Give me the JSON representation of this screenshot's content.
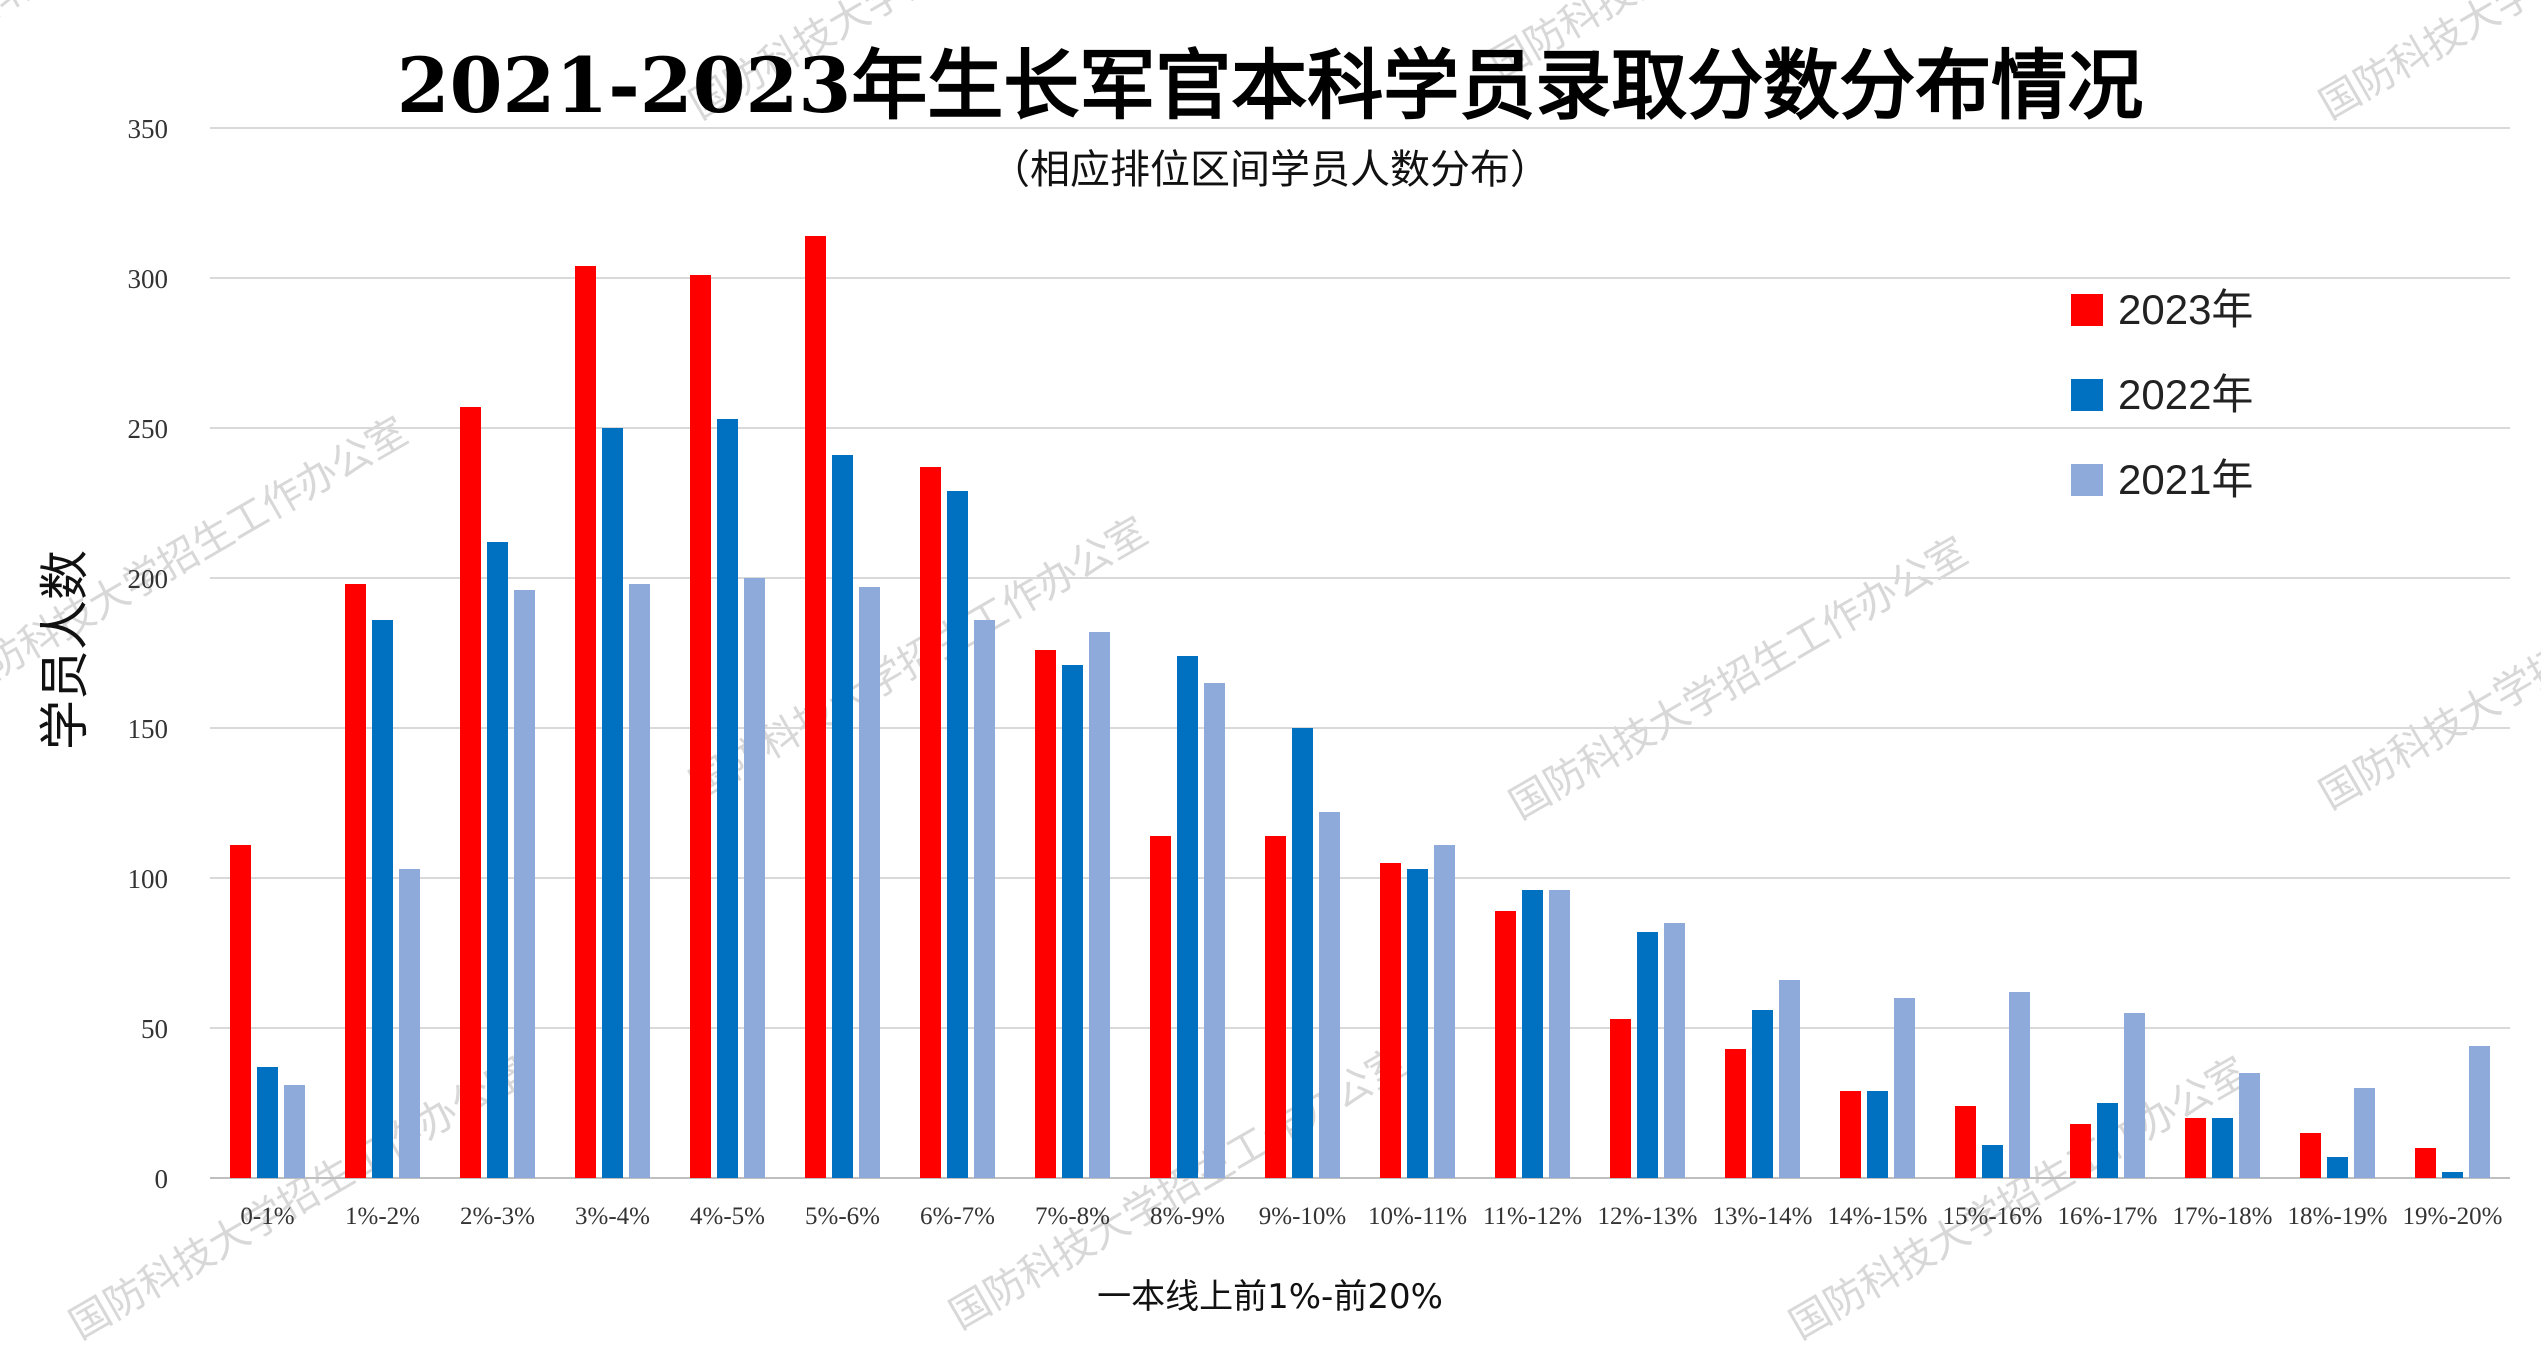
{
  "watermarks": [
    "国防科技大学招生工作办公室"
  ],
  "chart_data": {
    "type": "bar",
    "title": "2021-2023年生长军官本科学员录取分数分布情况",
    "subtitle": "（相应排位区间学员人数分布）",
    "xlabel": "一本线上前1%-前20%",
    "ylabel": "学员人数",
    "ylim": [
      0,
      350
    ],
    "yticks": [
      0,
      50,
      100,
      150,
      200,
      250,
      300,
      350
    ],
    "grid": true,
    "legend_position": "top-right",
    "categories": [
      "0-1%",
      "1%-2%",
      "2%-3%",
      "3%-4%",
      "4%-5%",
      "5%-6%",
      "6%-7%",
      "7%-8%",
      "8%-9%",
      "9%-10%",
      "10%-11%",
      "11%-12%",
      "12%-13%",
      "13%-14%",
      "14%-15%",
      "15%-16%",
      "16%-17%",
      "17%-18%",
      "18%-19%",
      "19%-20%"
    ],
    "series": [
      {
        "name": "2023年",
        "color": "#ff0000",
        "values": [
          111,
          198,
          257,
          304,
          301,
          314,
          237,
          176,
          114,
          114,
          105,
          89,
          53,
          43,
          29,
          24,
          18,
          20,
          15,
          10
        ]
      },
      {
        "name": "2022年",
        "color": "#0070c0",
        "values": [
          37,
          186,
          212,
          250,
          253,
          241,
          229,
          171,
          174,
          150,
          103,
          96,
          82,
          56,
          29,
          11,
          25,
          20,
          7,
          2
        ]
      },
      {
        "name": "2021年",
        "color": "#8eaadb",
        "values": [
          31,
          103,
          196,
          198,
          200,
          197,
          186,
          182,
          165,
          122,
          111,
          96,
          85,
          66,
          60,
          62,
          55,
          35,
          30,
          44
        ]
      }
    ]
  }
}
